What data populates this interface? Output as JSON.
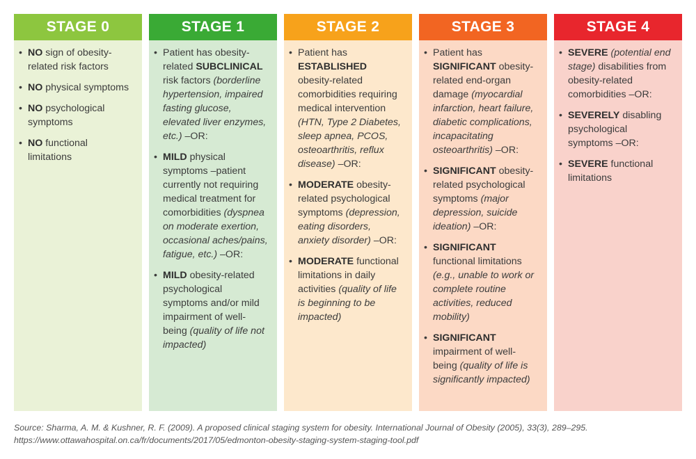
{
  "stages": [
    {
      "header": "STAGE 0",
      "head_color": "#8dc63f",
      "body_color": "#eaf2d7",
      "items": [
        [
          {
            "b": "NO"
          },
          {
            "t": " sign of obesity-related risk factors"
          }
        ],
        [
          {
            "b": "NO"
          },
          {
            "t": " physical symptoms"
          }
        ],
        [
          {
            "b": "NO"
          },
          {
            "t": " psychological symptoms"
          }
        ],
        [
          {
            "b": "NO"
          },
          {
            "t": " functional limitations"
          }
        ]
      ]
    },
    {
      "header": "STAGE 1",
      "head_color": "#3aaa35",
      "body_color": "#d6ead3",
      "items": [
        [
          {
            "t": "Patient has obesity-related "
          },
          {
            "b": "SUBCLINICAL"
          },
          {
            "t": " risk factors "
          },
          {
            "i": "(borderline hypertension, impaired fasting glucose, elevated liver enzymes, etc.)"
          },
          {
            "t": " –OR:"
          }
        ],
        [
          {
            "b": "MILD"
          },
          {
            "t": " physical symptoms –patient currently not requiring medical treatment for comorbidities "
          },
          {
            "i": "(dyspnea on moderate exertion, occasional aches/pains, fatigue, etc.)"
          },
          {
            "t": " –OR:"
          }
        ],
        [
          {
            "b": "MILD"
          },
          {
            "t": " obesity-related psychological symptoms and/or mild impairment of well-being "
          },
          {
            "i": "(quality of life not impacted)"
          }
        ]
      ]
    },
    {
      "header": "STAGE 2",
      "head_color": "#f7a21b",
      "body_color": "#fde8cc",
      "items": [
        [
          {
            "t": "Patient has "
          },
          {
            "b": "ESTABLISHED"
          },
          {
            "t": " obesity-related comorbidities requiring medical intervention "
          },
          {
            "i": "(HTN, Type 2 Diabetes, sleep apnea, PCOS, osteoarthritis, reflux disease)"
          },
          {
            "t": " –OR:"
          }
        ],
        [
          {
            "b": "MODERATE"
          },
          {
            "t": " obesity-related psychological symptoms "
          },
          {
            "i": "(depression, eating disorders, anxiety disorder)"
          },
          {
            "t": " –OR:"
          }
        ],
        [
          {
            "b": "MODERATE"
          },
          {
            "t": " functional limitations in daily activities "
          },
          {
            "i": "(quality of life is beginning to be impacted)"
          }
        ]
      ]
    },
    {
      "header": "STAGE 3",
      "head_color": "#f26522",
      "body_color": "#fcd9c5",
      "items": [
        [
          {
            "t": "Patient has "
          },
          {
            "b": "SIGNIFICANT"
          },
          {
            "t": " obesity-related end-organ damage "
          },
          {
            "i": "(myocardial infarction, heart failure, diabetic complications, incapacitating osteoarthritis)"
          },
          {
            "t": " –OR:"
          }
        ],
        [
          {
            "b": "SIGNIFICANT"
          },
          {
            "t": " obesity-related psychological symptoms "
          },
          {
            "i": "(major depression, suicide ideation)"
          },
          {
            "t": " –OR:"
          }
        ],
        [
          {
            "b": "SIGNIFICANT"
          },
          {
            "t": " functional limitations "
          },
          {
            "i": "(e.g., unable to work or complete routine activities, reduced mobility)"
          }
        ],
        [
          {
            "b": "SIGNIFICANT"
          },
          {
            "t": " impairment of well-being "
          },
          {
            "i": "(quality of life is significantly impacted)"
          }
        ]
      ]
    },
    {
      "header": "STAGE 4",
      "head_color": "#e8262d",
      "body_color": "#f9d2cb",
      "items": [
        [
          {
            "b": "SEVERE"
          },
          {
            "t": " "
          },
          {
            "i": "(potential end stage)"
          },
          {
            "t": " disabilities from obesity-related comorbidities –OR:"
          }
        ],
        [
          {
            "b": "SEVERELY"
          },
          {
            "t": " disabling psychological symptoms –OR:"
          }
        ],
        [
          {
            "b": "SEVERE"
          },
          {
            "t": " functional limitations"
          }
        ]
      ]
    }
  ],
  "bullet": "•",
  "source": {
    "line1": "Source: Sharma, A. M. & Kushner, R. F. (2009). A proposed clinical staging system for obesity. International Journal of Obesity (2005), 33(3), 289–295.",
    "line2": "https://www.ottawahospital.on.ca/fr/documents/2017/05/edmonton-obesity-staging-system-staging-tool.pdf"
  }
}
